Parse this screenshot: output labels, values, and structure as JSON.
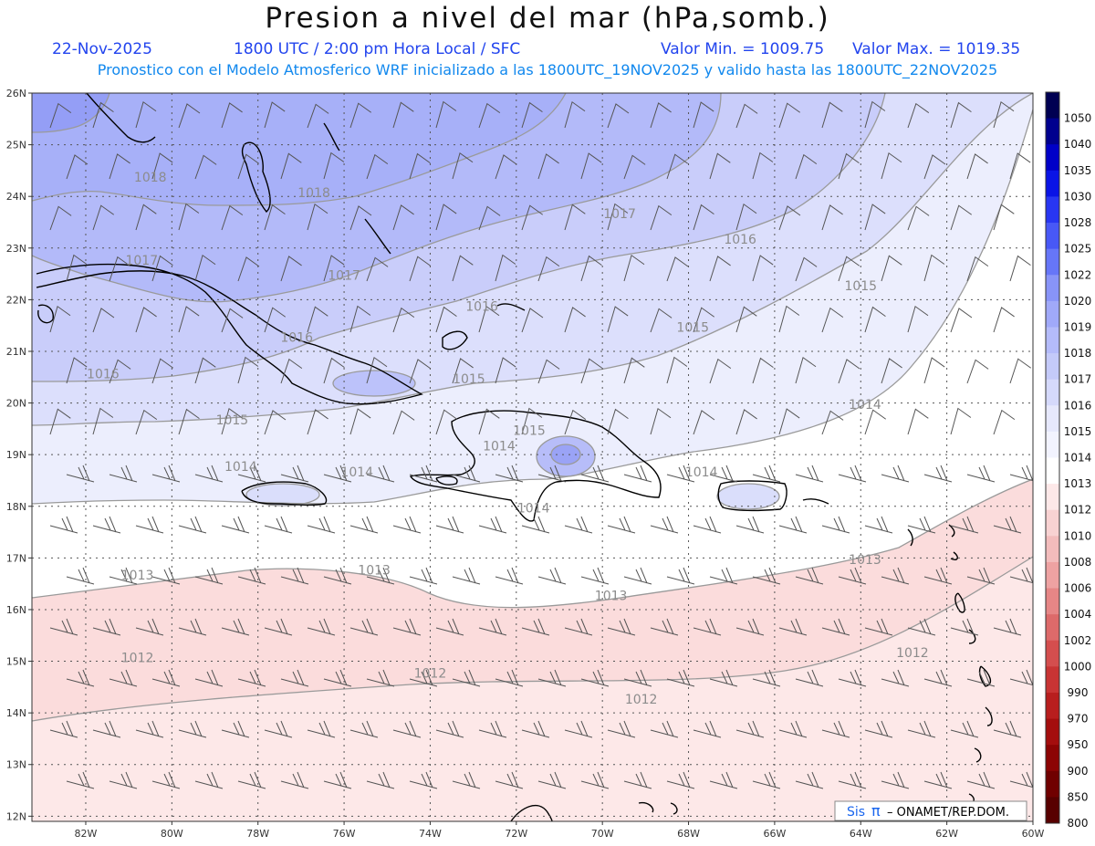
{
  "header": {
    "title": "Presion a nivel del mar (hPa,somb.)",
    "date": "22-Nov-2025",
    "time_label": "1800 UTC / 2:00 pm Hora Local / SFC",
    "min_label": "Valor Min. = 1009.75",
    "max_label": "Valor Max. = 1019.35",
    "model_line": "Pronostico con el Modelo Atmosferico WRF inicializado a las 1800UTC_19NOV2025 y valido hasta las  1800UTC_22NOV2025"
  },
  "map": {
    "lat_labels": [
      "26N",
      "25N",
      "24N",
      "23N",
      "22N",
      "21N",
      "20N",
      "19N",
      "18N",
      "17N",
      "16N",
      "15N",
      "14N",
      "13N",
      "12N"
    ],
    "lon_labels": [
      "82W",
      "80W",
      "78W",
      "76W",
      "74W",
      "72W",
      "70W",
      "68W",
      "66W",
      "64W",
      "62W",
      "60W"
    ],
    "isobar_labels": [
      {
        "text": "1018",
        "lon": -80.5,
        "lat": 24.3
      },
      {
        "text": "1018",
        "lon": -76.7,
        "lat": 24.0
      },
      {
        "text": "1017",
        "lon": -69.6,
        "lat": 23.6
      },
      {
        "text": "1016",
        "lon": -66.8,
        "lat": 23.1
      },
      {
        "text": "1017",
        "lon": -80.7,
        "lat": 22.7
      },
      {
        "text": "1017",
        "lon": -76.0,
        "lat": 22.4
      },
      {
        "text": "1016",
        "lon": -72.8,
        "lat": 21.8
      },
      {
        "text": "1015",
        "lon": -64.0,
        "lat": 22.2
      },
      {
        "text": "1016",
        "lon": -77.1,
        "lat": 21.2
      },
      {
        "text": "1015",
        "lon": -67.9,
        "lat": 21.4
      },
      {
        "text": "1016",
        "lon": -81.6,
        "lat": 20.5
      },
      {
        "text": "1015",
        "lon": -73.1,
        "lat": 20.4
      },
      {
        "text": "1014",
        "lon": -63.9,
        "lat": 19.9
      },
      {
        "text": "1015",
        "lon": -78.6,
        "lat": 19.6
      },
      {
        "text": "1015",
        "lon": -71.7,
        "lat": 19.4
      },
      {
        "text": "1014",
        "lon": -72.4,
        "lat": 19.1
      },
      {
        "text": "1014",
        "lon": -78.4,
        "lat": 18.7
      },
      {
        "text": "1014",
        "lon": -75.7,
        "lat": 18.6
      },
      {
        "text": "1014",
        "lon": -67.7,
        "lat": 18.6
      },
      {
        "text": "1014",
        "lon": -71.6,
        "lat": 17.9
      },
      {
        "text": "1013",
        "lon": -80.8,
        "lat": 16.6
      },
      {
        "text": "1013",
        "lon": -75.3,
        "lat": 16.7
      },
      {
        "text": "1013",
        "lon": -63.9,
        "lat": 16.9
      },
      {
        "text": "1013",
        "lon": -69.8,
        "lat": 16.2
      },
      {
        "text": "1012",
        "lon": -80.8,
        "lat": 15.0
      },
      {
        "text": "1012",
        "lon": -74.0,
        "lat": 14.7
      },
      {
        "text": "1012",
        "lon": -62.8,
        "lat": 15.1
      },
      {
        "text": "1012",
        "lon": -69.1,
        "lat": 14.2
      }
    ]
  },
  "colorbar": {
    "levels": [
      "1050",
      "1040",
      "1035",
      "1030",
      "1028",
      "1025",
      "1022",
      "1020",
      "1019",
      "1018",
      "1017",
      "1016",
      "1015",
      "1014",
      "1013",
      "1012",
      "1010",
      "1008",
      "1006",
      "1004",
      "1002",
      "1000",
      "990",
      "970",
      "950",
      "900",
      "850",
      "800"
    ],
    "colors": [
      "#000052",
      "#00008e",
      "#0000c8",
      "#0a14e6",
      "#2836f2",
      "#4858f6",
      "#6676f8",
      "#8894f8",
      "#a0a9f9",
      "#b4bbfa",
      "#c4caf9",
      "#d5d9fb",
      "#e6e8fc",
      "#f2f3fe",
      "#ffffff",
      "#fde8e8",
      "#f8d2d2",
      "#f3bcbc",
      "#eea2a2",
      "#e68686",
      "#dd6a6a",
      "#d44e4e",
      "#c83434",
      "#b81e1e",
      "#a40e0e",
      "#8c0404",
      "#700000",
      "#580000"
    ]
  },
  "credit": {
    "brand": "Sis",
    "brand_pi": "π",
    "org": "– ONAMET/REP.DOM."
  }
}
